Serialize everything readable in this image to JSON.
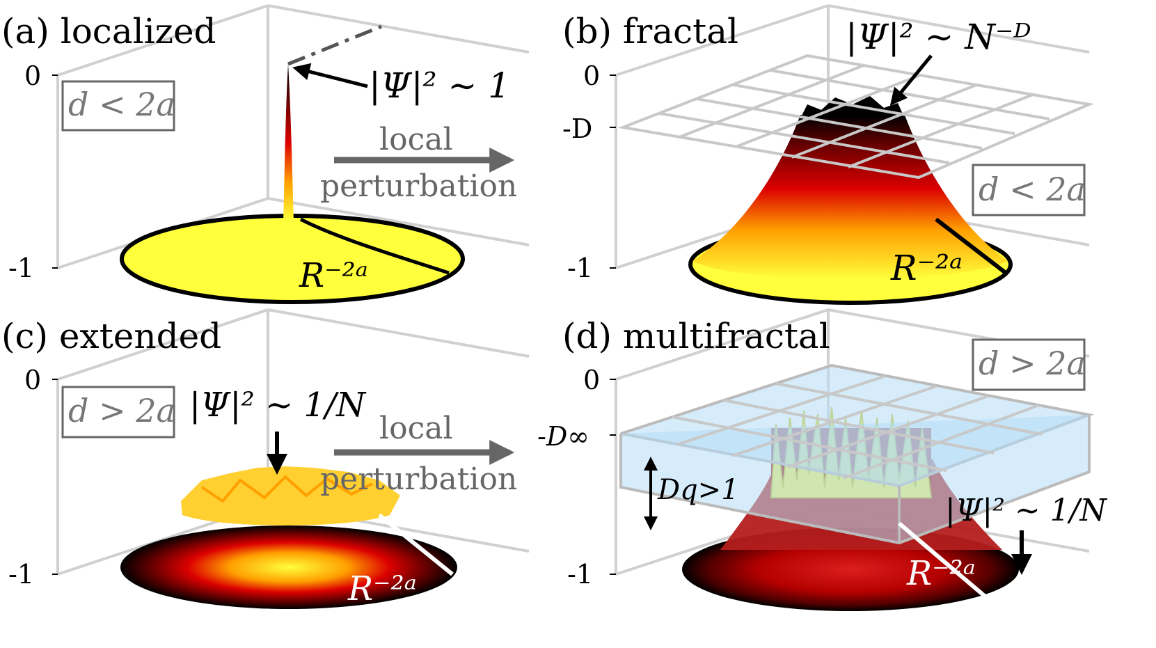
{
  "panels": {
    "a": {
      "title": "(a) localized",
      "tick_top": "0",
      "tick_bottom": "-1",
      "condition": "d < 2a",
      "peak_label": "|Ψ|² ∼ 1",
      "decay_label": "R⁻²ᵃ"
    },
    "b": {
      "title": "(b) fractal",
      "tick_top": "0",
      "tick_mid": "-D",
      "tick_bottom": "-1",
      "condition": "d < 2a",
      "peak_label": "|Ψ|² ∼ N⁻ᴰ",
      "decay_label": "R⁻²ᵃ"
    },
    "c": {
      "title": "(c) extended",
      "tick_top": "0",
      "tick_bottom": "-1",
      "condition": "d > 2a",
      "peak_label": "|Ψ|² ∼ 1/N",
      "decay_label": "R⁻²ᵃ"
    },
    "d": {
      "title": "(d) multifractal",
      "tick_top": "0",
      "tick_mid": "-D∞",
      "tick_bottom": "-1",
      "condition": "d > 2a",
      "peak_label": "|Ψ|² ∼ 1/N",
      "decay_label": "R⁻²ᵃ",
      "band_label": "Dq>1"
    }
  },
  "arrows": {
    "top": {
      "line1": "local",
      "line2": "perturbation"
    },
    "bottom": {
      "line1": "local",
      "line2": "perturbation"
    }
  },
  "colors": {
    "yellow": "#ffff3c",
    "orange": "#ffa000",
    "red": "#dc0000",
    "darkred": "#6e0000",
    "black": "#000000",
    "band_blue": "#b4dcf5",
    "arrow_grey": "#666666"
  }
}
